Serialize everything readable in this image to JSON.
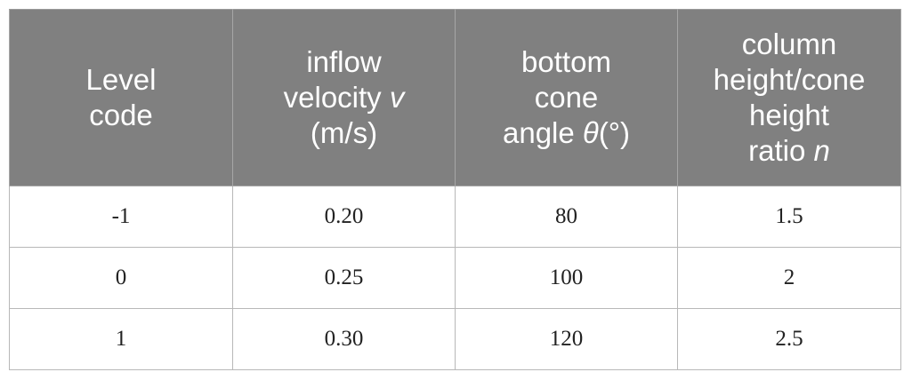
{
  "table": {
    "headers": [
      {
        "lines": [
          {
            "text": "Level",
            "italic": ""
          },
          {
            "text": "code",
            "italic": ""
          }
        ]
      },
      {
        "lines": [
          {
            "text": "inflow",
            "italic": ""
          },
          {
            "text": "velocity ",
            "italic": "v"
          },
          {
            "text": "(m/s)",
            "italic": ""
          }
        ]
      },
      {
        "lines": [
          {
            "text": "bottom",
            "italic": ""
          },
          {
            "text": "cone",
            "italic": ""
          },
          {
            "text": "angle ",
            "italic": "θ",
            "after": "(°)"
          }
        ]
      },
      {
        "lines": [
          {
            "text": "column",
            "italic": ""
          },
          {
            "text": "height/cone",
            "italic": ""
          },
          {
            "text": "height",
            "italic": ""
          },
          {
            "text": "ratio ",
            "italic": "n"
          }
        ]
      }
    ],
    "rows": [
      [
        "-1",
        "0.20",
        "80",
        "1.5"
      ],
      [
        "0",
        "0.25",
        "100",
        "2"
      ],
      [
        "1",
        "0.30",
        "120",
        "2.5"
      ]
    ]
  }
}
